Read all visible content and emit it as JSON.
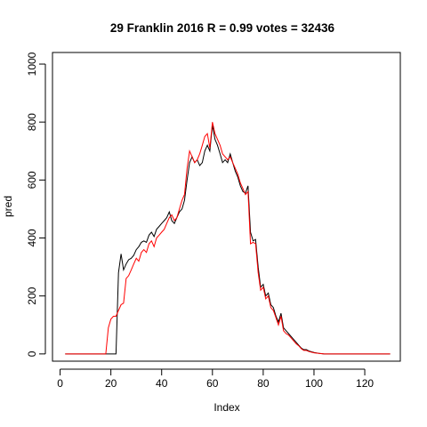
{
  "chart_data": {
    "type": "line",
    "title": "29 Franklin 2016 R = 0.99 votes = 32436",
    "xlabel": "Index",
    "ylabel": "pred",
    "xlim": [
      -3,
      134
    ],
    "ylim": [
      -25,
      1040
    ],
    "x_ticks": [
      0,
      20,
      40,
      60,
      80,
      100,
      120
    ],
    "y_ticks": [
      0,
      200,
      400,
      600,
      800,
      1000
    ],
    "x_tick_labels": [
      "0",
      "20",
      "40",
      "60",
      "80",
      "100",
      "120"
    ],
    "y_tick_labels": [
      "0",
      "200",
      "400",
      "600",
      "800",
      "1000"
    ],
    "grid": false,
    "legend": "none",
    "series": [
      {
        "color": "#000000",
        "points": [
          [
            2,
            0
          ],
          [
            10,
            0
          ],
          [
            18,
            0
          ],
          [
            22,
            0
          ],
          [
            23,
            280
          ],
          [
            24,
            345
          ],
          [
            25,
            290
          ],
          [
            26,
            310
          ],
          [
            27,
            325
          ],
          [
            28,
            330
          ],
          [
            29,
            340
          ],
          [
            30,
            360
          ],
          [
            31,
            370
          ],
          [
            32,
            385
          ],
          [
            33,
            390
          ],
          [
            34,
            385
          ],
          [
            35,
            410
          ],
          [
            36,
            420
          ],
          [
            37,
            405
          ],
          [
            38,
            430
          ],
          [
            39,
            440
          ],
          [
            40,
            450
          ],
          [
            41,
            460
          ],
          [
            42,
            470
          ],
          [
            43,
            490
          ],
          [
            44,
            460
          ],
          [
            45,
            450
          ],
          [
            46,
            470
          ],
          [
            47,
            490
          ],
          [
            48,
            500
          ],
          [
            49,
            530
          ],
          [
            50,
            600
          ],
          [
            51,
            660
          ],
          [
            52,
            680
          ],
          [
            53,
            660
          ],
          [
            54,
            670
          ],
          [
            55,
            650
          ],
          [
            56,
            660
          ],
          [
            57,
            700
          ],
          [
            58,
            720
          ],
          [
            59,
            700
          ],
          [
            60,
            790
          ],
          [
            61,
            740
          ],
          [
            62,
            720
          ],
          [
            63,
            690
          ],
          [
            64,
            660
          ],
          [
            65,
            670
          ],
          [
            66,
            660
          ],
          [
            67,
            690
          ],
          [
            68,
            660
          ],
          [
            69,
            630
          ],
          [
            70,
            610
          ],
          [
            71,
            580
          ],
          [
            72,
            560
          ],
          [
            73,
            555
          ],
          [
            74,
            580
          ],
          [
            75,
            420
          ],
          [
            76,
            390
          ],
          [
            77,
            395
          ],
          [
            78,
            300
          ],
          [
            79,
            230
          ],
          [
            80,
            240
          ],
          [
            81,
            200
          ],
          [
            82,
            210
          ],
          [
            83,
            170
          ],
          [
            84,
            160
          ],
          [
            85,
            130
          ],
          [
            86,
            110
          ],
          [
            87,
            140
          ],
          [
            88,
            90
          ],
          [
            89,
            80
          ],
          [
            90,
            70
          ],
          [
            91,
            60
          ],
          [
            92,
            50
          ],
          [
            93,
            40
          ],
          [
            94,
            30
          ],
          [
            95,
            20
          ],
          [
            96,
            15
          ],
          [
            97,
            15
          ],
          [
            98,
            10
          ],
          [
            100,
            5
          ],
          [
            102,
            2
          ],
          [
            104,
            0
          ],
          [
            110,
            0
          ],
          [
            120,
            0
          ],
          [
            130,
            0
          ]
        ]
      },
      {
        "color": "#ff0000",
        "points": [
          [
            2,
            0
          ],
          [
            10,
            0
          ],
          [
            18,
            0
          ],
          [
            19,
            90
          ],
          [
            20,
            120
          ],
          [
            21,
            130
          ],
          [
            22,
            130
          ],
          [
            23,
            150
          ],
          [
            24,
            170
          ],
          [
            25,
            175
          ],
          [
            26,
            260
          ],
          [
            27,
            270
          ],
          [
            28,
            290
          ],
          [
            29,
            310
          ],
          [
            30,
            330
          ],
          [
            31,
            320
          ],
          [
            32,
            350
          ],
          [
            33,
            360
          ],
          [
            34,
            350
          ],
          [
            35,
            380
          ],
          [
            36,
            390
          ],
          [
            37,
            370
          ],
          [
            38,
            400
          ],
          [
            39,
            410
          ],
          [
            40,
            420
          ],
          [
            41,
            430
          ],
          [
            42,
            450
          ],
          [
            43,
            470
          ],
          [
            44,
            480
          ],
          [
            45,
            460
          ],
          [
            46,
            470
          ],
          [
            47,
            500
          ],
          [
            48,
            530
          ],
          [
            49,
            550
          ],
          [
            50,
            640
          ],
          [
            51,
            700
          ],
          [
            52,
            680
          ],
          [
            53,
            660
          ],
          [
            54,
            670
          ],
          [
            55,
            690
          ],
          [
            56,
            720
          ],
          [
            57,
            750
          ],
          [
            58,
            760
          ],
          [
            59,
            710
          ],
          [
            60,
            800
          ],
          [
            61,
            760
          ],
          [
            62,
            740
          ],
          [
            63,
            720
          ],
          [
            64,
            690
          ],
          [
            65,
            680
          ],
          [
            66,
            670
          ],
          [
            67,
            680
          ],
          [
            68,
            660
          ],
          [
            69,
            640
          ],
          [
            70,
            620
          ],
          [
            71,
            590
          ],
          [
            72,
            570
          ],
          [
            73,
            550
          ],
          [
            74,
            560
          ],
          [
            75,
            380
          ],
          [
            76,
            385
          ],
          [
            77,
            380
          ],
          [
            78,
            280
          ],
          [
            79,
            220
          ],
          [
            80,
            230
          ],
          [
            81,
            190
          ],
          [
            82,
            200
          ],
          [
            83,
            160
          ],
          [
            84,
            150
          ],
          [
            85,
            125
          ],
          [
            86,
            100
          ],
          [
            87,
            130
          ],
          [
            88,
            80
          ],
          [
            89,
            70
          ],
          [
            90,
            65
          ],
          [
            91,
            55
          ],
          [
            92,
            45
          ],
          [
            93,
            35
          ],
          [
            94,
            28
          ],
          [
            95,
            18
          ],
          [
            96,
            12
          ],
          [
            97,
            12
          ],
          [
            98,
            8
          ],
          [
            100,
            4
          ],
          [
            102,
            2
          ],
          [
            104,
            0
          ],
          [
            110,
            0
          ],
          [
            120,
            0
          ],
          [
            130,
            0
          ]
        ]
      }
    ]
  }
}
